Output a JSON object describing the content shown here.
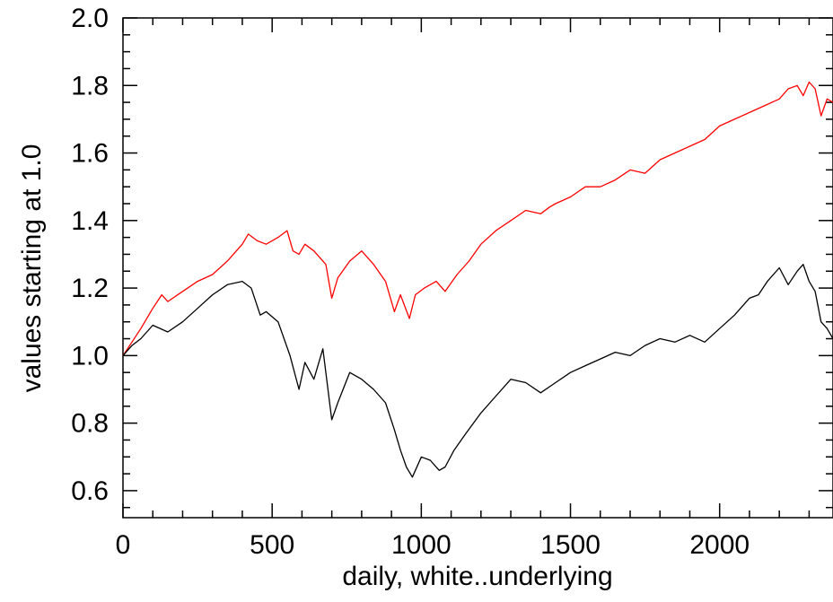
{
  "chart_data": {
    "type": "line",
    "title": "",
    "xlabel": "daily, white..underlying",
    "ylabel": "values starting at 1.0",
    "xlim": [
      0,
      2380
    ],
    "ylim": [
      0.52,
      2.0
    ],
    "x_ticks": [
      0,
      500,
      1000,
      1500,
      2000
    ],
    "x_tick_labels": [
      "0",
      "500",
      "1000",
      "1500",
      "2000"
    ],
    "y_ticks": [
      0.6,
      0.8,
      1.0,
      1.2,
      1.4,
      1.6,
      1.8,
      2.0
    ],
    "y_tick_labels": [
      "0.6",
      "0.8",
      "1.0",
      "1.2",
      "1.4",
      "1.6",
      "1.8",
      "2.0"
    ],
    "grid": false,
    "series": [
      {
        "color": "#ff0000",
        "x": [
          0,
          30,
          60,
          100,
          130,
          150,
          200,
          250,
          300,
          350,
          400,
          420,
          450,
          480,
          520,
          550,
          570,
          590,
          610,
          640,
          680,
          700,
          720,
          760,
          800,
          840,
          880,
          910,
          930,
          960,
          980,
          1010,
          1050,
          1080,
          1120,
          1160,
          1200,
          1250,
          1300,
          1350,
          1400,
          1430,
          1450,
          1500,
          1550,
          1600,
          1650,
          1700,
          1750,
          1800,
          1850,
          1900,
          1950,
          2000,
          2050,
          2100,
          2150,
          2200,
          2230,
          2260,
          2280,
          2300,
          2320,
          2340,
          2360,
          2380
        ],
        "values": [
          1.0,
          1.04,
          1.08,
          1.14,
          1.18,
          1.16,
          1.19,
          1.22,
          1.24,
          1.28,
          1.33,
          1.36,
          1.34,
          1.33,
          1.35,
          1.37,
          1.31,
          1.3,
          1.33,
          1.31,
          1.27,
          1.17,
          1.23,
          1.28,
          1.31,
          1.27,
          1.22,
          1.13,
          1.18,
          1.11,
          1.18,
          1.2,
          1.22,
          1.19,
          1.24,
          1.28,
          1.33,
          1.37,
          1.4,
          1.43,
          1.42,
          1.44,
          1.45,
          1.47,
          1.5,
          1.5,
          1.52,
          1.55,
          1.54,
          1.58,
          1.6,
          1.62,
          1.64,
          1.68,
          1.7,
          1.72,
          1.74,
          1.76,
          1.79,
          1.8,
          1.77,
          1.81,
          1.79,
          1.71,
          1.76,
          1.75
        ]
      },
      {
        "color": "#000000",
        "x": [
          0,
          30,
          60,
          100,
          150,
          200,
          250,
          300,
          350,
          400,
          430,
          460,
          480,
          520,
          560,
          590,
          610,
          640,
          670,
          700,
          720,
          760,
          800,
          840,
          880,
          910,
          930,
          950,
          970,
          1000,
          1030,
          1060,
          1080,
          1110,
          1150,
          1200,
          1250,
          1300,
          1350,
          1400,
          1450,
          1500,
          1550,
          1600,
          1650,
          1700,
          1750,
          1800,
          1850,
          1900,
          1950,
          2000,
          2050,
          2100,
          2130,
          2160,
          2200,
          2230,
          2260,
          2280,
          2300,
          2320,
          2340,
          2360,
          2380
        ],
        "values": [
          1.0,
          1.03,
          1.05,
          1.09,
          1.07,
          1.1,
          1.14,
          1.18,
          1.21,
          1.22,
          1.2,
          1.12,
          1.13,
          1.1,
          1.0,
          0.9,
          0.98,
          0.93,
          1.02,
          0.81,
          0.86,
          0.95,
          0.93,
          0.9,
          0.86,
          0.78,
          0.72,
          0.67,
          0.64,
          0.7,
          0.69,
          0.66,
          0.67,
          0.72,
          0.77,
          0.83,
          0.88,
          0.93,
          0.92,
          0.89,
          0.92,
          0.95,
          0.97,
          0.99,
          1.01,
          1.0,
          1.03,
          1.05,
          1.04,
          1.06,
          1.04,
          1.08,
          1.12,
          1.17,
          1.18,
          1.22,
          1.26,
          1.21,
          1.25,
          1.27,
          1.22,
          1.19,
          1.1,
          1.08,
          1.05
        ]
      }
    ]
  }
}
